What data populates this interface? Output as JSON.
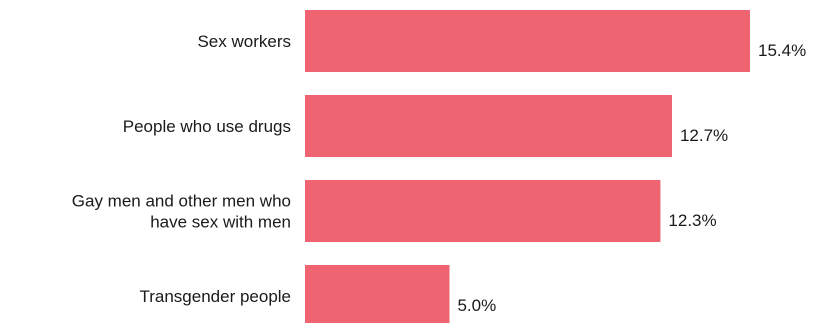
{
  "chart_data": {
    "type": "bar",
    "orientation": "horizontal",
    "title": "",
    "xlabel": "",
    "ylabel": "",
    "categories": [
      "Sex workers",
      "People who use drugs",
      "Gay men and other men who have sex with men",
      "Transgender people"
    ],
    "category_lines": [
      [
        "Sex workers"
      ],
      [
        "People who use drugs"
      ],
      [
        "Gay men and other men who",
        "have sex with men"
      ],
      [
        "Transgender people"
      ]
    ],
    "values": [
      15.4,
      12.7,
      12.3,
      5.0
    ],
    "value_labels": [
      "15.4%",
      "12.7%",
      "12.3%",
      "5.0%"
    ],
    "unit": "%",
    "xlim": [
      0,
      15.4
    ],
    "grid": false,
    "legend": "none",
    "bar_color": "#ee6470"
  }
}
